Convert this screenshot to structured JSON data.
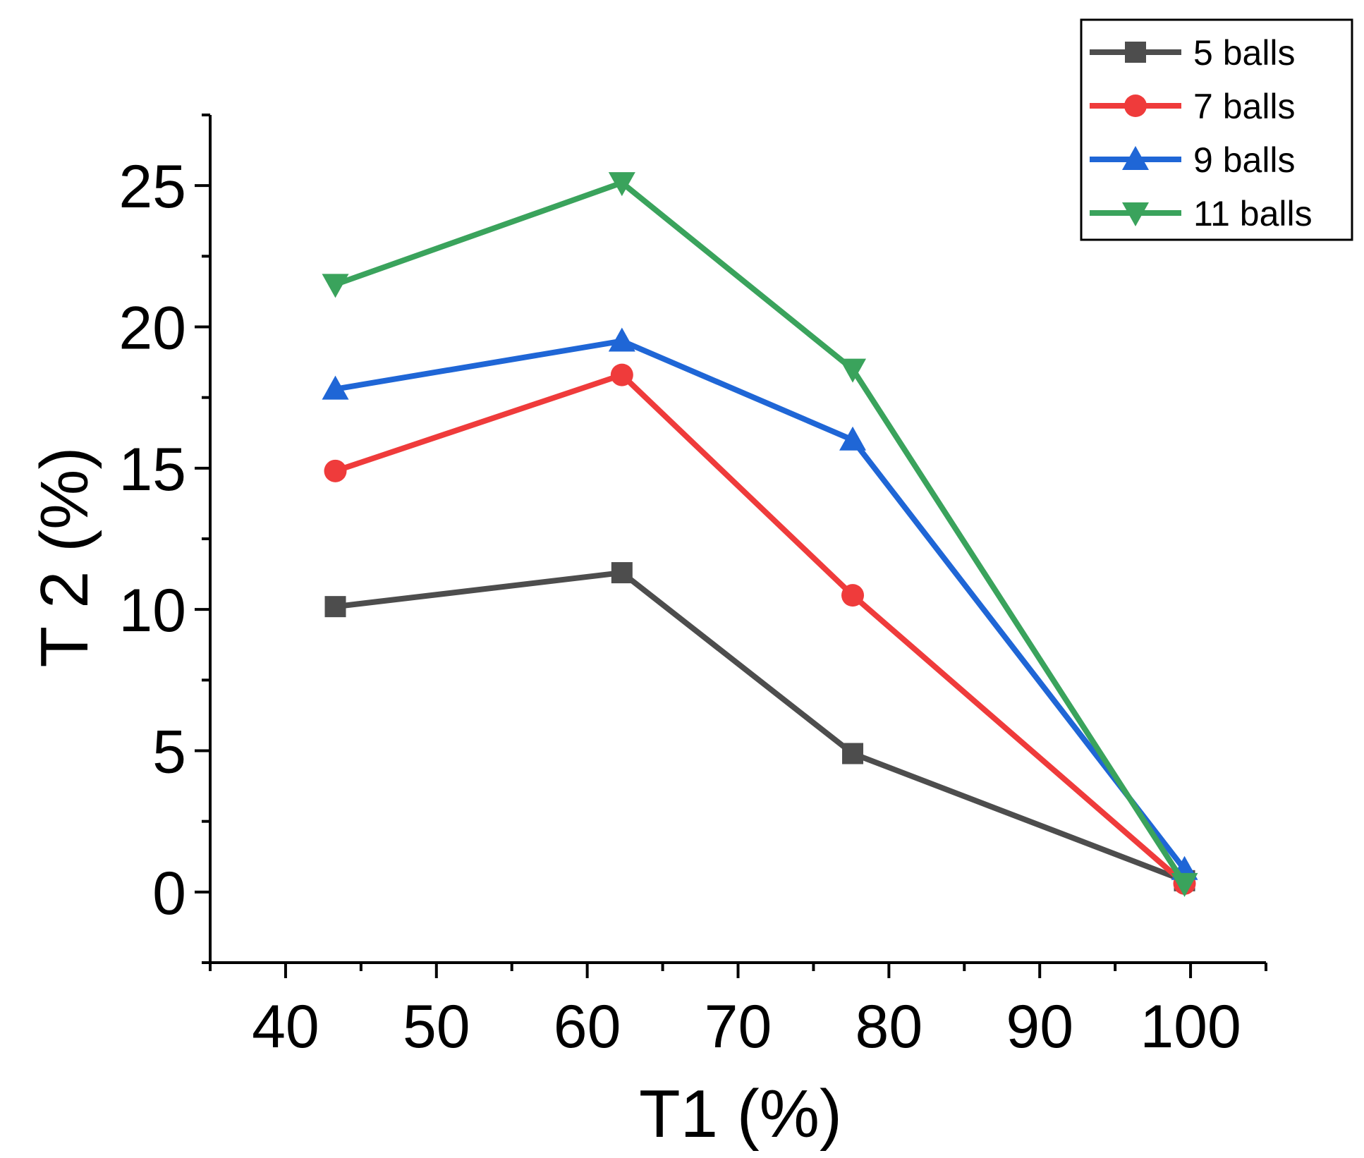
{
  "chart_data": {
    "type": "line",
    "xlabel": "T1 (%)",
    "ylabel": "T 2 (%)",
    "xlim": [
      35,
      105
    ],
    "ylim": [
      -2.5,
      27.5
    ],
    "xticks": [
      40,
      50,
      60,
      70,
      80,
      90,
      100
    ],
    "yticks": [
      0,
      5,
      10,
      15,
      20,
      25
    ],
    "x_minor_step": 5,
    "y_minor_step": 2.5,
    "grid": false,
    "legend_position": "top-right",
    "series": [
      {
        "name": "5 balls",
        "color": "#4d4d4d",
        "marker": "square",
        "x": [
          43.3,
          62.3,
          77.6,
          99.6
        ],
        "y": [
          10.1,
          11.3,
          4.9,
          0.4
        ]
      },
      {
        "name": "7 balls",
        "color": "#ef3b3b",
        "marker": "circle",
        "x": [
          43.3,
          62.3,
          77.6,
          99.6
        ],
        "y": [
          14.9,
          18.3,
          10.5,
          0.3
        ]
      },
      {
        "name": "9 balls",
        "color": "#1f66d6",
        "marker": "triangle-up",
        "x": [
          43.3,
          62.3,
          77.6,
          99.6
        ],
        "y": [
          17.8,
          19.5,
          16.0,
          0.8
        ]
      },
      {
        "name": "11 balls",
        "color": "#3aa35c",
        "marker": "triangle-down",
        "x": [
          43.3,
          62.3,
          77.6,
          99.6
        ],
        "y": [
          21.5,
          25.1,
          18.5,
          0.3
        ]
      }
    ]
  }
}
